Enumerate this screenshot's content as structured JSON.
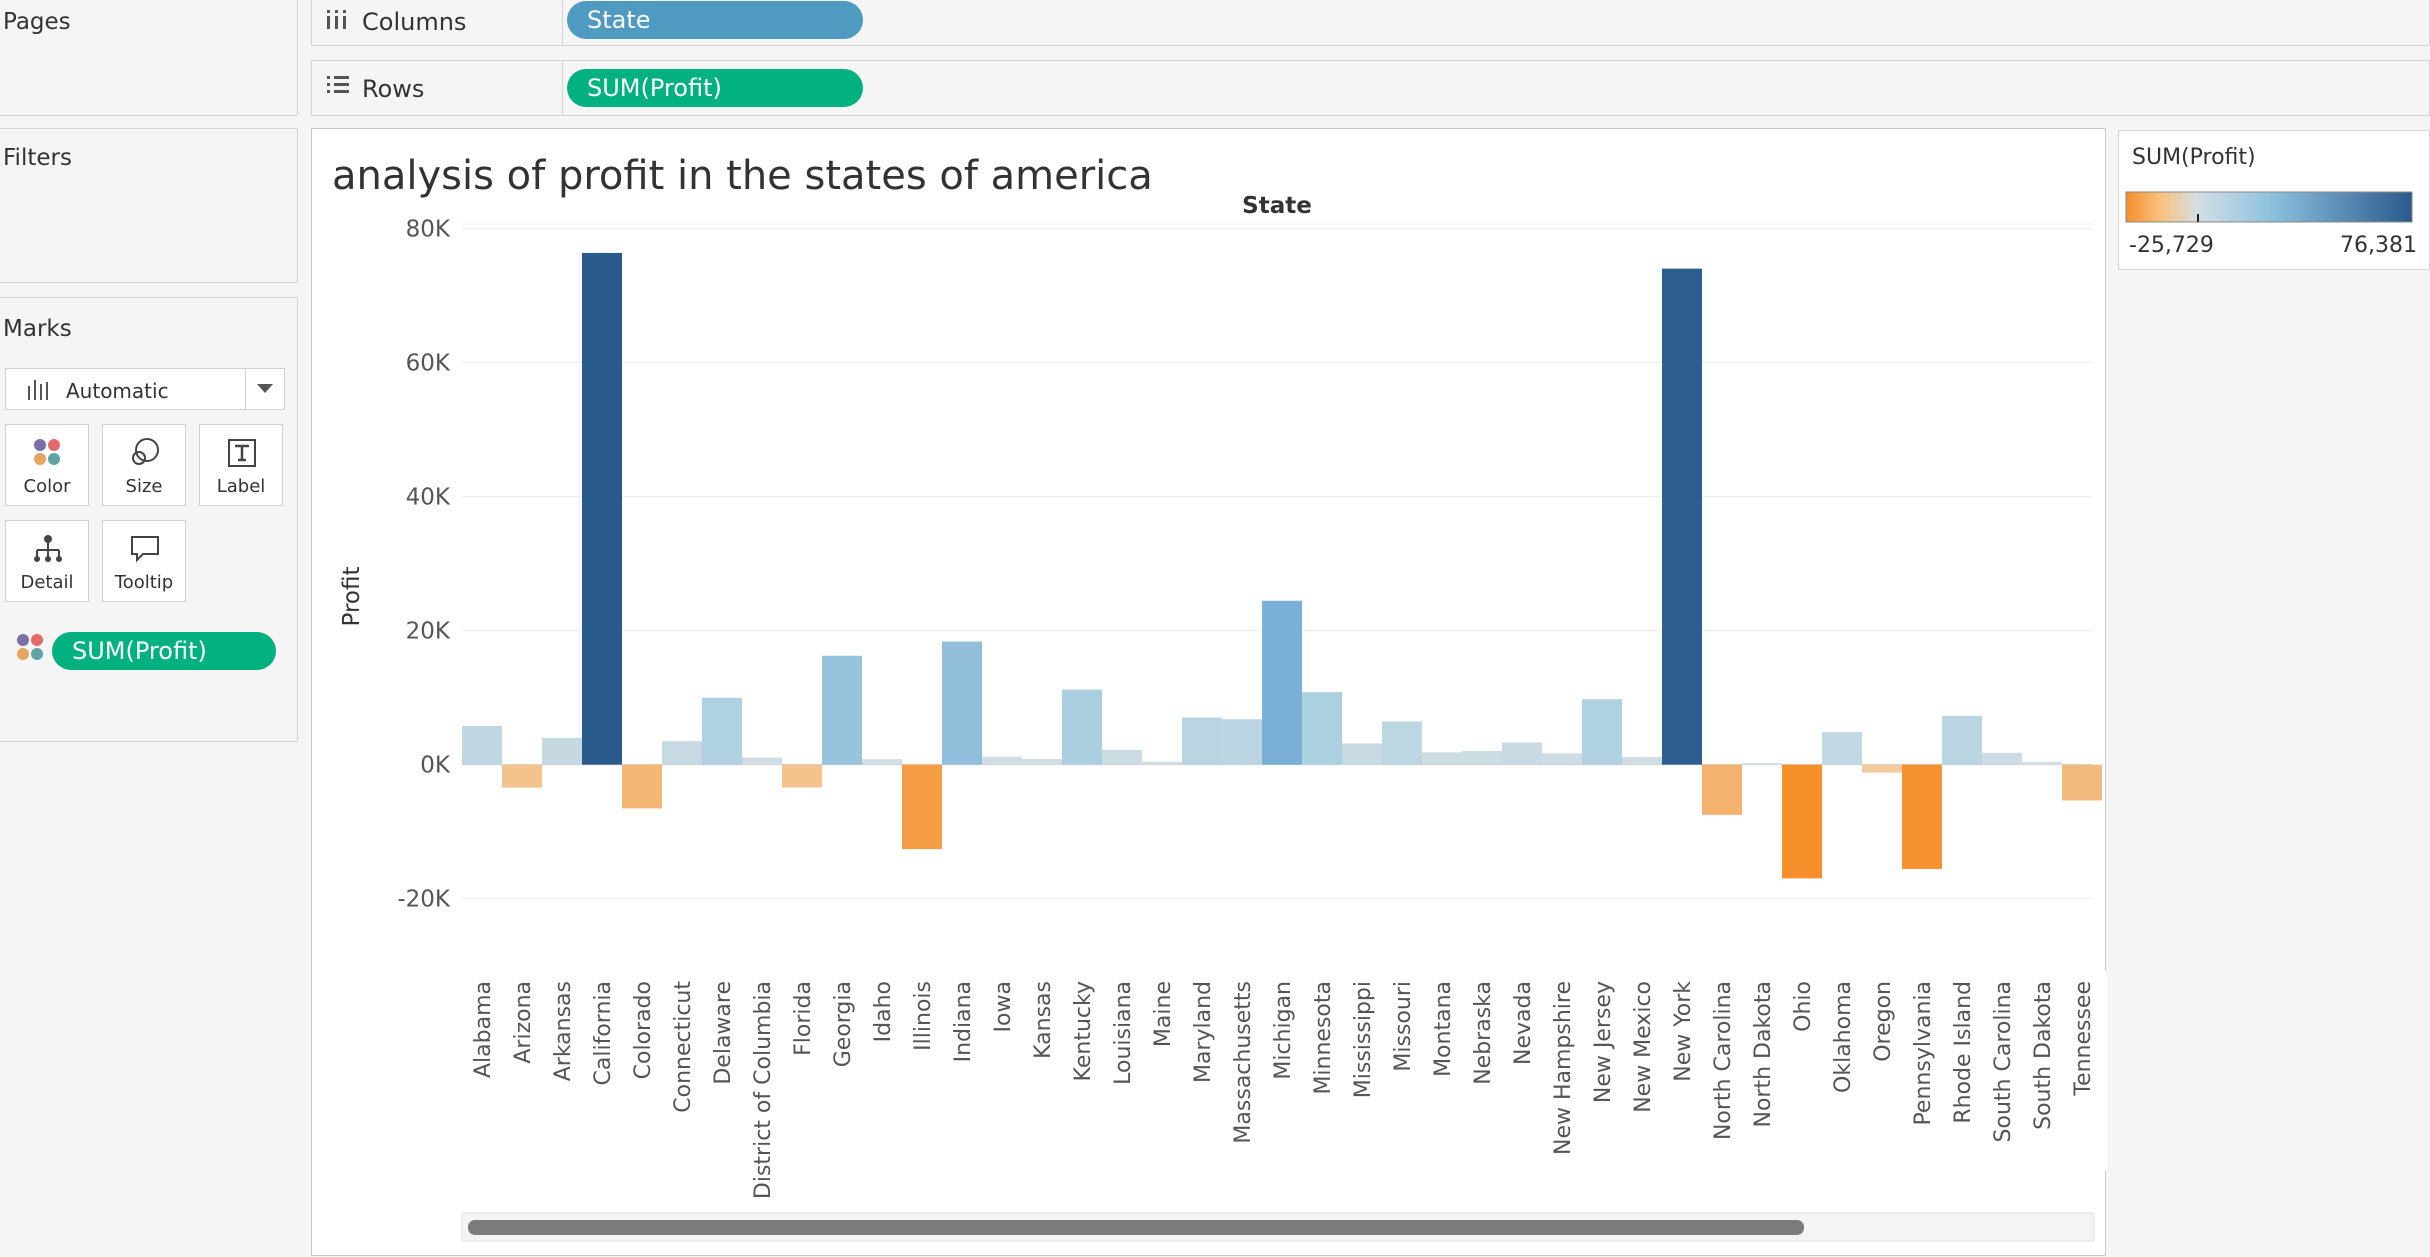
{
  "left": {
    "pages_title": "Pages",
    "filters_title": "Filters",
    "marks_title": "Marks",
    "mark_type": "Automatic",
    "mark_buttons": {
      "color": "Color",
      "size": "Size",
      "label": "Label",
      "detail": "Detail",
      "tooltip": "Tooltip"
    },
    "color_pill": "SUM(Profit)"
  },
  "shelves": {
    "columns_label": "Columns",
    "columns_pill": "State",
    "rows_label": "Rows",
    "rows_pill": "SUM(Profit)"
  },
  "sheet": {
    "title": "analysis of profit in the states of america"
  },
  "legend": {
    "title": "SUM(Profit)",
    "min_label": "-25,729",
    "max_label": "76,381",
    "colors": [
      "#f58f2a",
      "#f9c17e",
      "#d4dfe4",
      "#8fc3e0",
      "#2a5a8c"
    ]
  },
  "icons": [
    "columns-icon",
    "rows-icon",
    "bar-chart-icon",
    "dropdown-arrow-icon",
    "color-dots-icon",
    "size-circles-icon",
    "label-t-icon",
    "detail-tree-icon",
    "tooltip-bubble-icon"
  ],
  "chart_data": {
    "type": "bar",
    "title": "analysis of profit in the states of america",
    "column_header": "State",
    "ylabel": "Profit",
    "ylim": [
      -30500,
      80700
    ],
    "yticks": [
      -20000,
      0,
      20000,
      40000,
      60000,
      80000
    ],
    "ytick_labels": [
      "-20K",
      "0K",
      "20K",
      "40K",
      "60K",
      "80K"
    ],
    "grid": true,
    "color_range": [
      -25729,
      76381
    ],
    "categories": [
      "Alabama",
      "Arizona",
      "Arkansas",
      "California",
      "Colorado",
      "Connecticut",
      "Delaware",
      "District of Columbia",
      "Florida",
      "Georgia",
      "Idaho",
      "Illinois",
      "Indiana",
      "Iowa",
      "Kansas",
      "Kentucky",
      "Louisiana",
      "Maine",
      "Maryland",
      "Massachusetts",
      "Michigan",
      "Minnesota",
      "Mississippi",
      "Missouri",
      "Montana",
      "Nebraska",
      "Nevada",
      "New Hampshire",
      "New Jersey",
      "New Mexico",
      "New York",
      "North Carolina",
      "North Dakota",
      "Ohio",
      "Oklahoma",
      "Oregon",
      "Pennsylvania",
      "Rhode Island",
      "South Carolina",
      "South Dakota",
      "Tennessee"
    ],
    "values": [
      5787,
      -3428,
      4009,
      76381,
      -6528,
      3511,
      9977,
      1060,
      -3399,
      16250,
      827,
      -12608,
      18383,
      1184,
      836,
      11200,
      2196,
      455,
      7031,
      6786,
      24463,
      10823,
      3172,
      6436,
      1833,
      2037,
      3317,
      1707,
      9773,
      1158,
      74039,
      -7490,
      230,
      -16971,
      4854,
      -1190,
      -15560,
      7286,
      1769,
      394,
      -5342
    ]
  }
}
